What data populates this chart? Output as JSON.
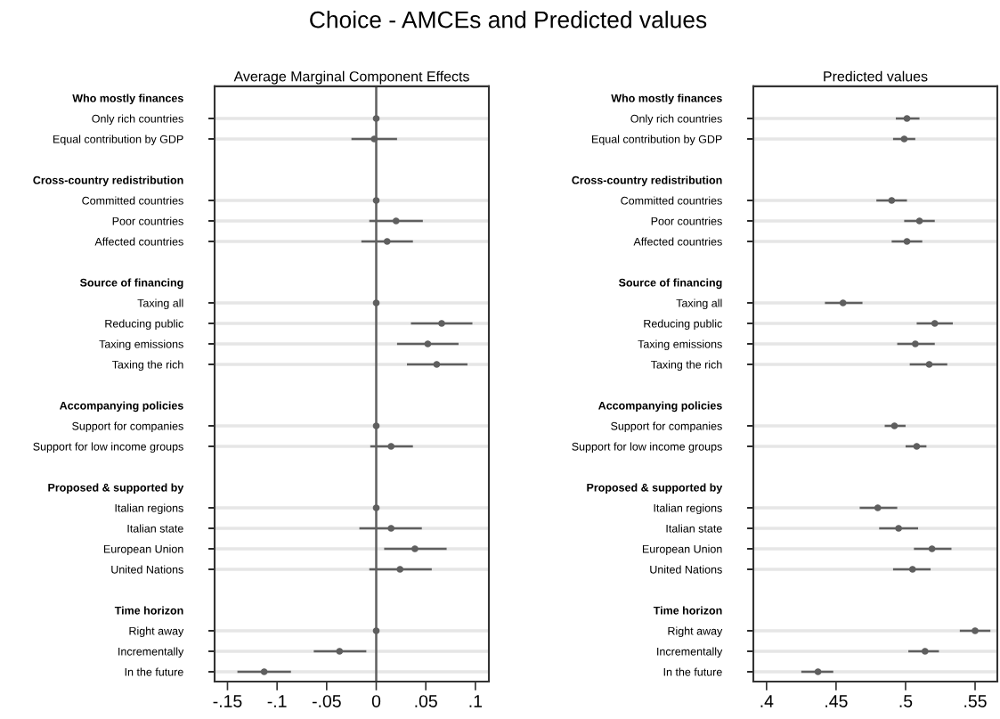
{
  "chart_data": [
    {
      "type": "scatter",
      "orientation": "horizontal",
      "title": "Average Marginal Component Effects",
      "annotations": [
        "Choice - AMCEs and Predicted values"
      ],
      "categories": [
        "Who mostly finances",
        "Only rich countries",
        "Equal contribution by GDP",
        null,
        "Cross-country redistribution",
        "Committed countries",
        "Poor countries",
        "Affected countries",
        null,
        "Source of financing",
        "Taxing all",
        "Reducing public",
        "Taxing emissions",
        "Taxing the rich",
        null,
        "Accompanying policies",
        "Support for companies",
        "Support for low income groups",
        null,
        "Proposed & supported by",
        "Italian regions",
        "Italian state",
        "European Union",
        "United Nations",
        null,
        "Time horizon",
        "Right away",
        "Incrementally",
        "In the future"
      ],
      "series": [
        {
          "color": "#5f5f5f",
          "values": [
            null,
            0,
            -0.002,
            null,
            null,
            0,
            0.02,
            0.011,
            null,
            null,
            0,
            0.066,
            0.052,
            0.061,
            null,
            null,
            0,
            0.015,
            null,
            null,
            0,
            0.015,
            0.039,
            0.024,
            null,
            null,
            0,
            -0.037,
            -0.113
          ],
          "errors": [
            null,
            null,
            [
              -0.025,
              0.021
            ],
            null,
            null,
            null,
            [
              -0.007,
              0.047
            ],
            [
              -0.015,
              0.037
            ],
            null,
            null,
            null,
            [
              0.035,
              0.097
            ],
            [
              0.021,
              0.083
            ],
            [
              0.031,
              0.092
            ],
            null,
            null,
            null,
            [
              -0.006,
              0.037
            ],
            null,
            null,
            null,
            [
              -0.017,
              0.046
            ],
            [
              0.008,
              0.071
            ],
            [
              -0.007,
              0.056
            ],
            null,
            null,
            null,
            [
              -0.063,
              -0.01
            ],
            [
              -0.14,
              -0.086
            ]
          ]
        }
      ],
      "xlim": [
        -0.163,
        0.1136
      ],
      "xticks": [
        {
          "value": -0.15,
          "label": "-.15"
        },
        {
          "value": -0.1,
          "label": "-.1"
        },
        {
          "value": -0.05,
          "label": "-.05"
        },
        0,
        {
          "value": 0.05,
          "label": ".05"
        },
        {
          "value": 0.1,
          "label": ".1"
        }
      ],
      "ref_lines": [
        {
          "axis": "x",
          "value": 0,
          "color": "#5f5f5f"
        }
      ],
      "grid": "y",
      "marker": "circle"
    },
    {
      "type": "scatter",
      "orientation": "horizontal",
      "title": "Predicted values",
      "categories": [
        "Who mostly finances",
        "Only rich countries",
        "Equal contribution by GDP",
        null,
        "Cross-country redistribution",
        "Committed countries",
        "Poor countries",
        "Affected countries",
        null,
        "Source of financing",
        "Taxing all",
        "Reducing public",
        "Taxing emissions",
        "Taxing the rich",
        null,
        "Accompanying policies",
        "Support for companies",
        "Support for low income groups",
        null,
        "Proposed & supported by",
        "Italian regions",
        "Italian state",
        "European Union",
        "United Nations",
        null,
        "Time horizon",
        "Right away",
        "Incrementally",
        "In the future"
      ],
      "series": [
        {
          "color": "#5f5f5f",
          "values": [
            null,
            0.501,
            0.499,
            null,
            null,
            0.49,
            0.51,
            0.501,
            null,
            null,
            0.455,
            0.521,
            0.507,
            0.517,
            null,
            null,
            0.492,
            0.508,
            null,
            null,
            0.48,
            0.495,
            0.519,
            0.505,
            null,
            null,
            0.55,
            0.514,
            0.437
          ],
          "errors": [
            null,
            [
              0.493,
              0.51
            ],
            [
              0.491,
              0.507
            ],
            null,
            null,
            [
              0.479,
              0.501
            ],
            [
              0.499,
              0.521
            ],
            [
              0.49,
              0.512
            ],
            null,
            null,
            [
              0.442,
              0.469
            ],
            [
              0.508,
              0.534
            ],
            [
              0.494,
              0.521
            ],
            [
              0.503,
              0.53
            ],
            null,
            null,
            [
              0.485,
              0.5
            ],
            [
              0.5,
              0.515
            ],
            null,
            null,
            [
              0.467,
              0.494
            ],
            [
              0.481,
              0.509
            ],
            [
              0.506,
              0.533
            ],
            [
              0.491,
              0.518
            ],
            null,
            null,
            [
              0.539,
              0.561
            ],
            [
              0.502,
              0.524
            ],
            [
              0.425,
              0.448
            ]
          ]
        }
      ],
      "xlim": [
        0.3905,
        0.566
      ],
      "xticks": [
        {
          "value": 0.4,
          "label": ".4"
        },
        {
          "value": 0.45,
          "label": ".45"
        },
        {
          "value": 0.5,
          "label": ".5"
        },
        {
          "value": 0.55,
          "label": ".55"
        }
      ],
      "grid": "y",
      "marker": "circle"
    }
  ]
}
